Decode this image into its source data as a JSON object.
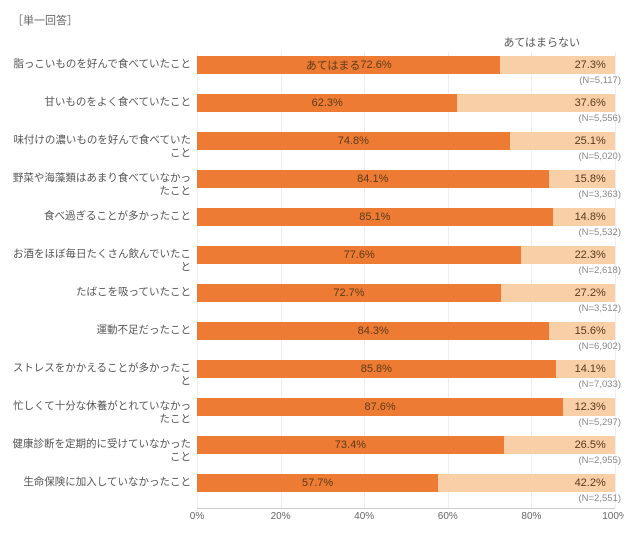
{
  "subtitle": "［単一回答］",
  "legend_good": "あてはまる",
  "legend_bad": "あてはまらない",
  "colors": {
    "good": "#ee7b33",
    "bad": "#f9cfa8",
    "grid": "#eeeeee",
    "text": "#555555",
    "connector": "#bbbbbb"
  },
  "axis": {
    "min": 0,
    "max": 100,
    "step": 20,
    "suffix": "%"
  },
  "rows": [
    {
      "label": "脂っこいものを好んで食べていたこと",
      "good": 72.6,
      "bad": 27.3,
      "n": "5,117"
    },
    {
      "label": "甘いものをよく食べていたこと",
      "good": 62.3,
      "bad": 37.6,
      "n": "5,556"
    },
    {
      "label": "味付けの濃いものを好んで食べていたこと",
      "good": 74.8,
      "bad": 25.1,
      "n": "5,020"
    },
    {
      "label": "野菜や海藻類はあまり食べていなかったこと",
      "good": 84.1,
      "bad": 15.8,
      "n": "3,363"
    },
    {
      "label": "食べ過ぎることが多かったこと",
      "good": 85.1,
      "bad": 14.8,
      "n": "5,532"
    },
    {
      "label": "お酒をほぼ毎日たくさん飲んでいたこと",
      "good": 77.6,
      "bad": 22.3,
      "n": "2,618"
    },
    {
      "label": "たばこを吸っていたこと",
      "good": 72.7,
      "bad": 27.2,
      "n": "3,512"
    },
    {
      "label": "運動不足だったこと",
      "good": 84.3,
      "bad": 15.6,
      "n": "6,902"
    },
    {
      "label": "ストレスをかかえることが多かったこと",
      "good": 85.8,
      "bad": 14.1,
      "n": "7,033"
    },
    {
      "label": "忙しくて十分な休養がとれていなかったこと",
      "good": 87.6,
      "bad": 12.3,
      "n": "5,297"
    },
    {
      "label": "健康診断を定期的に受けていなかったこと",
      "good": 73.4,
      "bad": 26.5,
      "n": "2,955"
    },
    {
      "label": "生命保険に加入していなかったこと",
      "good": 57.7,
      "bad": 42.2,
      "n": "2,551"
    }
  ]
}
